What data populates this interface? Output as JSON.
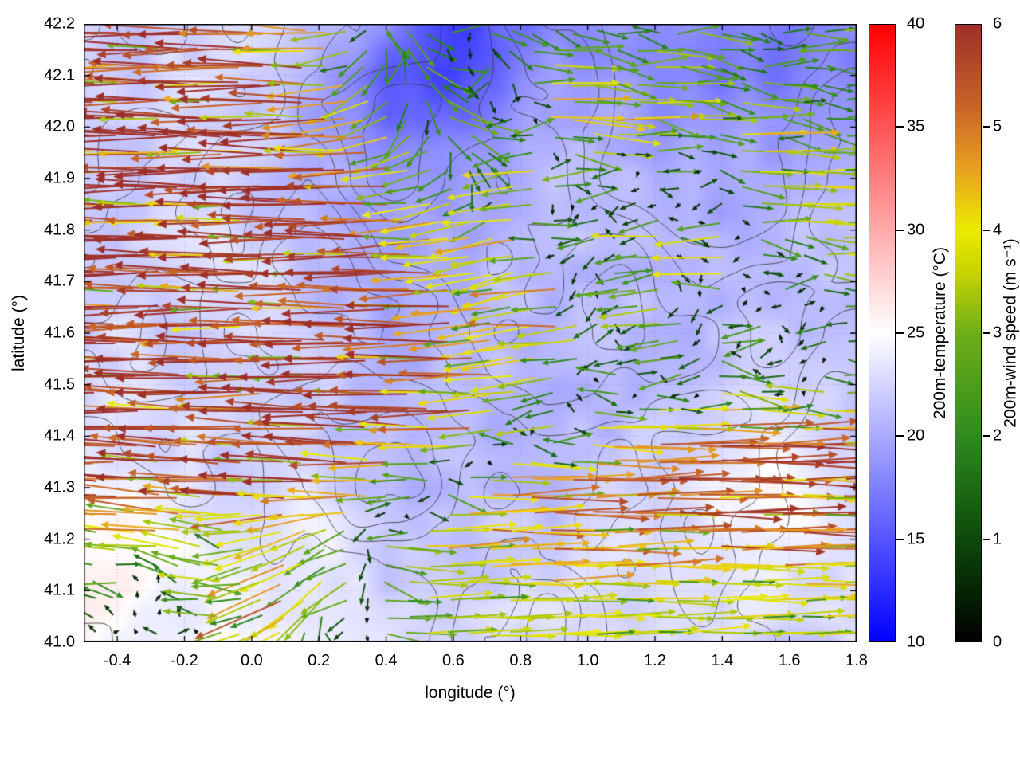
{
  "chart_data": {
    "type": "heatmap",
    "subtype": "geographic map with temperature field, terrain contours and wind-vector overlay",
    "title": "",
    "xlabel": "longitude (°)",
    "ylabel": "latitude (°)",
    "xlim": [
      -0.5,
      1.8
    ],
    "ylim": [
      41.0,
      42.2
    ],
    "grid": "dotted",
    "xticks": [
      {
        "v": -0.4,
        "label": "-0.4"
      },
      {
        "v": -0.2,
        "label": "-0.2"
      },
      {
        "v": 0.0,
        "label": "0.0"
      },
      {
        "v": 0.2,
        "label": "0.2"
      },
      {
        "v": 0.4,
        "label": "0.4"
      },
      {
        "v": 0.6,
        "label": "0.6"
      },
      {
        "v": 0.8,
        "label": "0.8"
      },
      {
        "v": 1.0,
        "label": "1.0"
      },
      {
        "v": 1.2,
        "label": "1.2"
      },
      {
        "v": 1.4,
        "label": "1.4"
      },
      {
        "v": 1.6,
        "label": "1.6"
      },
      {
        "v": 1.8,
        "label": "1.8"
      }
    ],
    "yticks": [
      {
        "v": 41.0,
        "label": "41.0"
      },
      {
        "v": 41.1,
        "label": "41.1"
      },
      {
        "v": 41.2,
        "label": "41.2"
      },
      {
        "v": 41.3,
        "label": "41.3"
      },
      {
        "v": 41.4,
        "label": "41.4"
      },
      {
        "v": 41.5,
        "label": "41.5"
      },
      {
        "v": 41.6,
        "label": "41.6"
      },
      {
        "v": 41.7,
        "label": "41.7"
      },
      {
        "v": 41.8,
        "label": "41.8"
      },
      {
        "v": 41.9,
        "label": "41.9"
      },
      {
        "v": 42.0,
        "label": "42.0"
      },
      {
        "v": 42.1,
        "label": "42.1"
      },
      {
        "v": 42.2,
        "label": "42.2"
      }
    ],
    "lon": [
      -0.5,
      -0.4,
      -0.3,
      -0.2,
      -0.1,
      0.0,
      0.1,
      0.2,
      0.3,
      0.4,
      0.5,
      0.6,
      0.7,
      0.8,
      0.9,
      1.0,
      1.1,
      1.2,
      1.3,
      1.4,
      1.5,
      1.6,
      1.7,
      1.8
    ],
    "lat": [
      42.2,
      42.1,
      42.0,
      41.9,
      41.8,
      41.7,
      41.6,
      41.5,
      41.4,
      41.3,
      41.2,
      41.1,
      41.0
    ],
    "temperature_c": [
      [
        22,
        22,
        22,
        22,
        23,
        23,
        22,
        21,
        20,
        18,
        15,
        14,
        15,
        17,
        18,
        18,
        19,
        18,
        18,
        17,
        17,
        16,
        17,
        18
      ],
      [
        22,
        22,
        22,
        23,
        23,
        22,
        21,
        20,
        18,
        15,
        14,
        14,
        16,
        18,
        19,
        19,
        19,
        18,
        18,
        17,
        17,
        17,
        18,
        18
      ],
      [
        22,
        22,
        22,
        23,
        23,
        22,
        21,
        20,
        19,
        17,
        16,
        17,
        18,
        19,
        20,
        20,
        20,
        19,
        19,
        19,
        19,
        19,
        19,
        19
      ],
      [
        22,
        22,
        22,
        22,
        23,
        22,
        21,
        20,
        20,
        19,
        19,
        19,
        20,
        20,
        21,
        21,
        21,
        20,
        20,
        20,
        20,
        20,
        20,
        20
      ],
      [
        22,
        22,
        23,
        23,
        23,
        22,
        22,
        21,
        20,
        20,
        20,
        20,
        20,
        21,
        21,
        21,
        21,
        21,
        20,
        20,
        21,
        21,
        21,
        21
      ],
      [
        22,
        22,
        22,
        23,
        23,
        23,
        22,
        21,
        20,
        20,
        20,
        20,
        21,
        21,
        21,
        21,
        21,
        21,
        21,
        21,
        21,
        21,
        21,
        21
      ],
      [
        22,
        23,
        22,
        22,
        23,
        23,
        22,
        21,
        21,
        20,
        20,
        21,
        21,
        21,
        20,
        21,
        21,
        21,
        21,
        21,
        22,
        22,
        21,
        21
      ],
      [
        23,
        23,
        23,
        22,
        22,
        23,
        22,
        22,
        21,
        21,
        21,
        21,
        21,
        21,
        20,
        20,
        21,
        21,
        21,
        22,
        22,
        22,
        22,
        22
      ],
      [
        23,
        23,
        23,
        23,
        22,
        22,
        22,
        22,
        21,
        21,
        21,
        21,
        20,
        20,
        21,
        21,
        21,
        22,
        22,
        23,
        24,
        24,
        23,
        22
      ],
      [
        24,
        24,
        23,
        23,
        22,
        22,
        23,
        23,
        22,
        21,
        21,
        21,
        21,
        21,
        21,
        22,
        22,
        22,
        23,
        24,
        25,
        25,
        24,
        23
      ],
      [
        25,
        26,
        25,
        24,
        23,
        23,
        24,
        24,
        23,
        22,
        21,
        21,
        22,
        22,
        22,
        22,
        23,
        23,
        23,
        24,
        24,
        24,
        24,
        23
      ],
      [
        26,
        26,
        25,
        24,
        24,
        24,
        24,
        24,
        23,
        22,
        22,
        22,
        22,
        23,
        23,
        23,
        23,
        23,
        23,
        23,
        23,
        23,
        23,
        23
      ],
      [
        25,
        25,
        24,
        24,
        24,
        24,
        24,
        23,
        23,
        23,
        22,
        22,
        23,
        23,
        23,
        23,
        23,
        23,
        23,
        23,
        23,
        22,
        22,
        23
      ]
    ],
    "wind_u_ms": [
      [
        -5.7,
        -5.7,
        -5.7,
        -5.7,
        -5.7,
        -5.7,
        -4.5,
        -4.5,
        -2.5,
        1.5,
        2.5,
        -3.5,
        3.0,
        1.5,
        1.5,
        2.0,
        1.8,
        1.5,
        3.5,
        2.0,
        1.5,
        2.5,
        3.8,
        3.0
      ],
      [
        -5.8,
        -5.8,
        -5.8,
        -5.8,
        -5.8,
        -5.8,
        -5.8,
        -5.0,
        -3.0,
        -1.5,
        2.0,
        3.2,
        -3.0,
        2.0,
        4.2,
        3.0,
        2.0,
        4.5,
        2.2,
        1.5,
        2.8,
        2.0,
        1.5,
        2.2
      ],
      [
        -5.8,
        -5.8,
        -5.8,
        -5.8,
        -5.8,
        -5.8,
        -5.8,
        -5.8,
        -4.8,
        -3.2,
        -1.0,
        2.5,
        3.5,
        -4.0,
        4.5,
        3.5,
        4.8,
        2.5,
        4.0,
        2.0,
        4.5,
        2.5,
        1.8,
        2.5
      ],
      [
        -5.8,
        -5.8,
        -5.8,
        -5.8,
        -5.8,
        -5.8,
        -5.8,
        -5.8,
        -5.8,
        -5.0,
        -4.0,
        -2.0,
        2.0,
        -4.5,
        -3.5,
        4.0,
        -4.2,
        3.0,
        -3.8,
        2.2,
        4.2,
        3.0,
        4.5,
        3.5
      ],
      [
        -5.8,
        -5.8,
        -5.8,
        -5.8,
        -5.8,
        -5.8,
        -5.8,
        -5.8,
        -5.8,
        -5.8,
        -5.2,
        -4.2,
        -3.0,
        -4.8,
        3.5,
        -4.0,
        2.5,
        -4.5,
        3.5,
        -4.0,
        2.5,
        4.0,
        3.0,
        4.2
      ],
      [
        -5.8,
        -5.8,
        -5.8,
        -5.8,
        -5.8,
        -5.8,
        -5.8,
        -5.8,
        -5.8,
        -5.8,
        -5.8,
        -5.0,
        -4.0,
        -3.0,
        -4.5,
        2.5,
        -4.2,
        -3.0,
        2.0,
        -3.8,
        3.0,
        -3.5,
        2.5,
        3.5
      ],
      [
        -5.8,
        -5.8,
        -5.8,
        -5.8,
        -5.8,
        -5.8,
        -5.8,
        -5.8,
        -5.8,
        -5.8,
        -5.8,
        -5.2,
        -4.5,
        -3.5,
        -4.8,
        -3.0,
        2.0,
        -4.0,
        -2.5,
        2.5,
        -3.5,
        2.0,
        -3.0,
        2.5
      ],
      [
        -5.8,
        -5.8,
        -5.8,
        -5.8,
        -5.8,
        -5.8,
        -5.8,
        -5.8,
        -5.8,
        -5.8,
        -5.8,
        -5.8,
        -5.0,
        -4.2,
        -3.2,
        2.0,
        -4.5,
        2.5,
        -3.8,
        3.0,
        2.0,
        -3.2,
        2.5,
        3.0
      ],
      [
        -5.7,
        -5.7,
        -5.7,
        -5.7,
        -5.7,
        -5.7,
        -5.7,
        -5.7,
        -5.7,
        -5.7,
        -5.7,
        -5.0,
        -4.0,
        3.0,
        -3.5,
        4.2,
        5.2,
        5.5,
        5.6,
        5.5,
        5.6,
        5.5,
        5.6,
        5.5
      ],
      [
        -5.6,
        -5.6,
        -5.6,
        -5.6,
        -5.6,
        -5.6,
        -5.6,
        -5.6,
        -5.6,
        -4.5,
        -3.5,
        3.0,
        4.0,
        5.5,
        5.6,
        5.5,
        4.5,
        5.6,
        5.5,
        5.6,
        5.5,
        5.6,
        5.5,
        5.6
      ],
      [
        -2.0,
        -3.5,
        -4.5,
        -3.8,
        -2.5,
        -3.0,
        -4.0,
        -3.0,
        -2.0,
        3.5,
        4.0,
        4.5,
        5.0,
        4.0,
        5.5,
        4.5,
        5.5,
        5.0,
        4.5,
        5.5,
        4.2,
        5.5,
        4.5,
        5.0
      ],
      [
        -1.5,
        -2.5,
        1.8,
        -2.0,
        -3.5,
        -2.8,
        -4.5,
        -3.5,
        -2.5,
        2.5,
        3.5,
        3.0,
        3.8,
        3.5,
        4.0,
        3.5,
        3.8,
        4.0,
        3.5,
        3.8,
        3.5,
        4.0,
        3.8,
        4.0
      ],
      [
        -1.0,
        1.5,
        -1.8,
        2.0,
        -2.5,
        -3.5,
        -4.2,
        2.5,
        -2.0,
        3.0,
        3.5,
        3.2,
        3.5,
        3.8,
        3.5,
        3.6,
        3.8,
        3.5,
        3.6,
        3.8,
        3.5,
        3.6,
        3.8,
        3.5
      ]
    ],
    "wind_v_ms": [
      [
        0,
        0,
        0,
        0,
        0,
        0,
        0.3,
        0.3,
        -1.0,
        -2.0,
        -1.0,
        -0.5,
        -0.5,
        -1.5,
        -0.8,
        -0.5,
        -0.3,
        -0.5,
        0,
        -0.3,
        -0.5,
        0.2,
        0.3,
        0
      ],
      [
        0,
        0,
        0,
        0,
        0,
        0,
        0,
        0.2,
        -0.8,
        -1.8,
        -2.0,
        -0.8,
        -1.0,
        -1.0,
        0.3,
        -0.3,
        -0.5,
        0.2,
        -0.4,
        -0.6,
        0,
        -0.3,
        -0.4,
        0
      ],
      [
        0.1,
        0.1,
        0.1,
        0.1,
        0.1,
        0.1,
        0.1,
        0.1,
        -0.3,
        -1.2,
        -2.2,
        -1.5,
        -0.5,
        -0.5,
        0,
        -0.5,
        0.3,
        -0.5,
        0,
        -0.5,
        0.3,
        -0.3,
        -0.4,
        0
      ],
      [
        0,
        0,
        0,
        0,
        0,
        0,
        0,
        0,
        0,
        -0.3,
        -0.8,
        -1.5,
        -1.5,
        -0.3,
        -0.8,
        0,
        -0.3,
        -0.5,
        -0.3,
        -0.5,
        0.2,
        -0.2,
        0.3,
        0
      ],
      [
        0,
        0,
        0,
        0,
        0,
        0,
        0,
        0,
        0,
        0,
        -0.2,
        -0.5,
        -1.0,
        -0.2,
        -0.3,
        -0.5,
        -0.8,
        0,
        -0.3,
        -0.3,
        -0.5,
        0,
        -0.3,
        0.2
      ],
      [
        0,
        0,
        0,
        0,
        0,
        0,
        0,
        0,
        0,
        0,
        0,
        -0.3,
        -0.8,
        -1.2,
        -0.3,
        -1.0,
        -0.3,
        -0.8,
        -0.8,
        -0.3,
        -0.3,
        -0.3,
        -0.5,
        0
      ],
      [
        0,
        0,
        0,
        0,
        0,
        0,
        0,
        0,
        0,
        0,
        0,
        0,
        -0.3,
        -0.8,
        0,
        -0.8,
        -0.8,
        -0.3,
        -0.8,
        -0.5,
        -0.3,
        -0.5,
        -0.3,
        0
      ],
      [
        0,
        0,
        0,
        0,
        0,
        0,
        0,
        0,
        0,
        0,
        0,
        0,
        -0.2,
        -0.5,
        -0.8,
        -0.8,
        0,
        -0.5,
        -0.3,
        -0.3,
        -0.5,
        -0.3,
        -0.3,
        0
      ],
      [
        0.2,
        0.2,
        0.2,
        0.2,
        0.2,
        0.2,
        0.2,
        0.2,
        0.2,
        0.2,
        0.2,
        0,
        -0.5,
        -0.5,
        -0.5,
        -0.3,
        0,
        0.2,
        0,
        0,
        0.2,
        0,
        0,
        0
      ],
      [
        0.3,
        0.3,
        0.3,
        0.3,
        0.3,
        0.3,
        0.3,
        0.3,
        0.3,
        0,
        -0.5,
        -0.5,
        0,
        0.2,
        0,
        0,
        0.3,
        0,
        0,
        0,
        0,
        0,
        0,
        0
      ],
      [
        1.0,
        0.5,
        0.3,
        0.5,
        0.8,
        -0.5,
        -1.0,
        -2.0,
        -1.0,
        -0.5,
        0,
        0.3,
        0,
        0.3,
        0,
        0,
        0.2,
        0,
        0,
        0,
        0,
        0,
        0,
        0
      ],
      [
        0.8,
        0.5,
        0.5,
        0.8,
        0.3,
        -0.8,
        -2.5,
        -2.8,
        -1.5,
        -0.5,
        0,
        0.3,
        0,
        0,
        0.2,
        0,
        0,
        0,
        0.2,
        0,
        0,
        0,
        0,
        0
      ],
      [
        0.5,
        0.3,
        0.3,
        0.3,
        0,
        -1.5,
        -2.0,
        -0.8,
        -0.5,
        0,
        0.2,
        0,
        0,
        0.2,
        0,
        0,
        0,
        0,
        0.2,
        0,
        0,
        0,
        0,
        0
      ]
    ],
    "contours": {
      "color": "#3a3a3a",
      "labels": "none (thin dark terrain contour lines)"
    },
    "colorbars": [
      {
        "label": "200m-temperature (°C)",
        "range": [
          10,
          40
        ],
        "ticks": [
          {
            "v": 10,
            "label": "10"
          },
          {
            "v": 15,
            "label": "15"
          },
          {
            "v": 20,
            "label": "20"
          },
          {
            "v": 25,
            "label": "25"
          },
          {
            "v": 30,
            "label": "30"
          },
          {
            "v": 35,
            "label": "35"
          },
          {
            "v": 40,
            "label": "40"
          }
        ],
        "stops": [
          {
            "v": 10,
            "c": "#0000ff"
          },
          {
            "v": 25,
            "c": "#ffffff"
          },
          {
            "v": 40,
            "c": "#ff0000"
          }
        ]
      },
      {
        "label": "200m-wind speed (m s⁻¹)",
        "range": [
          0,
          6
        ],
        "ticks": [
          {
            "v": 0,
            "label": "0"
          },
          {
            "v": 1,
            "label": "1"
          },
          {
            "v": 2,
            "label": "2"
          },
          {
            "v": 3,
            "label": "3"
          },
          {
            "v": 4,
            "label": "4"
          },
          {
            "v": 5,
            "label": "5"
          },
          {
            "v": 6,
            "label": "6"
          }
        ],
        "stops": [
          {
            "v": 0,
            "c": "#000000"
          },
          {
            "v": 1,
            "c": "#0d4a0a"
          },
          {
            "v": 2,
            "c": "#2e8b1e"
          },
          {
            "v": 3,
            "c": "#6eaf19"
          },
          {
            "v": 3.6,
            "c": "#c8d400"
          },
          {
            "v": 4,
            "c": "#ebeb00"
          },
          {
            "v": 4.6,
            "c": "#e8a01e"
          },
          {
            "v": 5.2,
            "c": "#c86428"
          },
          {
            "v": 6,
            "c": "#9e2f28"
          }
        ]
      }
    ]
  }
}
